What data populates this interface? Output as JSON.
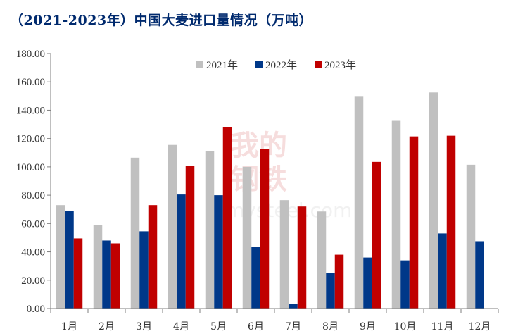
{
  "title": "（2021-2023年）中国大麦进口量情况（万吨）",
  "watermark": {
    "text_cn": "我的钢铁",
    "text_en": "mysteel.com"
  },
  "colors": {
    "2021": "#c0c0c0",
    "2022": "#003889",
    "2023": "#c00000"
  },
  "chart_data": {
    "type": "bar",
    "title": "（2021-2023年）中国大麦进口量情况（万吨）",
    "categories": [
      "1月",
      "2月",
      "3月",
      "4月",
      "5月",
      "6月",
      "7月",
      "8月",
      "9月",
      "10月",
      "11月",
      "12月"
    ],
    "series": [
      {
        "name": "2021年",
        "values": [
          73,
          59,
          106.5,
          115.5,
          111,
          100,
          76.5,
          68.5,
          150,
          132.5,
          152.5,
          101.5
        ]
      },
      {
        "name": "2022年",
        "values": [
          69,
          48,
          54.5,
          80.5,
          80,
          43.5,
          3,
          25,
          36,
          34,
          53,
          47.5
        ]
      },
      {
        "name": "2023年",
        "values": [
          49.5,
          46,
          73,
          100.5,
          128,
          112.5,
          72,
          38,
          103.5,
          121.5,
          122,
          null
        ]
      }
    ],
    "ylim": [
      0,
      180
    ],
    "yticks": [
      "0.00",
      "20.00",
      "40.00",
      "60.00",
      "80.00",
      "100.00",
      "120.00",
      "140.00",
      "160.00",
      "180.00"
    ],
    "legend_position": "top-center",
    "grid": false
  }
}
